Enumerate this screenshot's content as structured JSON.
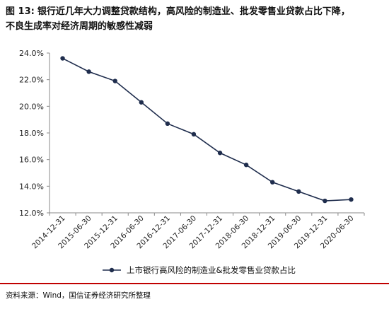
{
  "title": {
    "label": "图 13:",
    "line1": "银行近几年大力调整贷款结构，高风险的制造业、批发零售业贷款占比下降，",
    "line2": "不良生成率对经济周期的敏感性减弱"
  },
  "footer": {
    "source": "资料来源：Wind，国信证券经济研究所整理"
  },
  "colors": {
    "line": "#1f2d4d",
    "axis": "#888888",
    "footer_rule": "#c00000"
  },
  "chart_data": {
    "type": "line",
    "title": "",
    "xlabel": "",
    "ylabel": "",
    "categories": [
      "2014-12-31",
      "2015-06-30",
      "2015-12-31",
      "2016-06-30",
      "2016-12-31",
      "2017-06-30",
      "2017-12-31",
      "2018-06-30",
      "2018-12-31",
      "2019-06-30",
      "2019-12-31",
      "2020-06-30"
    ],
    "series": [
      {
        "name": "上市银行高风险的制造业&批发零售业贷款占比",
        "values": [
          23.6,
          22.6,
          21.9,
          20.3,
          18.7,
          17.9,
          16.5,
          15.6,
          14.3,
          13.6,
          12.9,
          13.0
        ]
      }
    ],
    "yticks": [
      "12.0%",
      "14.0%",
      "16.0%",
      "18.0%",
      "20.0%",
      "22.0%",
      "24.0%"
    ],
    "ylim": [
      12,
      24
    ],
    "grid": false,
    "legend": "bottom"
  }
}
